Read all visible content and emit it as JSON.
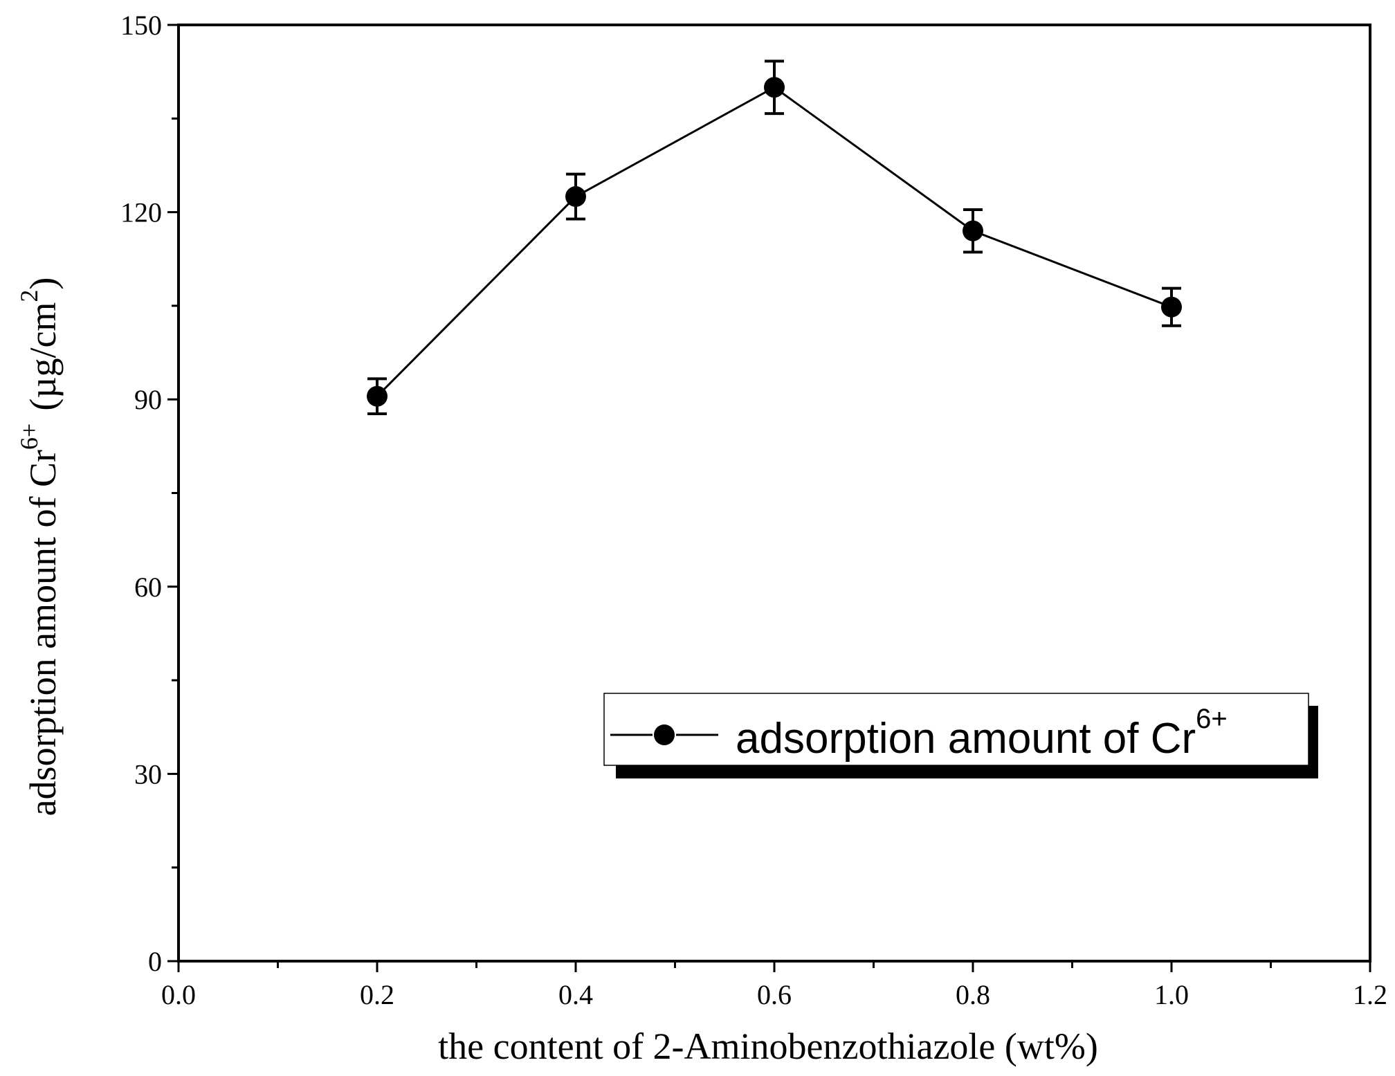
{
  "chart_data": {
    "type": "line",
    "xlabel": "the content of 2-Aminobenzothiazole (wt%)",
    "ylabel_main": "adsorption amount of Cr",
    "ylabel_sup": "6+",
    "ylabel_unit": "(µg/cm",
    "ylabel_unit_sup": "2",
    "ylabel_close": ")",
    "xlim": [
      0.0,
      1.2
    ],
    "ylim": [
      0,
      150
    ],
    "x_ticks": [
      0.0,
      0.2,
      0.4,
      0.6,
      0.8,
      1.0,
      1.2
    ],
    "x_tick_labels": [
      "0.0",
      "0.2",
      "0.4",
      "0.6",
      "0.8",
      "1.0",
      "1.2"
    ],
    "y_ticks": [
      0,
      30,
      60,
      90,
      120,
      150
    ],
    "y_tick_labels": [
      "0",
      "30",
      "60",
      "90",
      "120",
      "150"
    ],
    "grid": false,
    "legend_position": "lower-right",
    "series": [
      {
        "name": "adsorption amount of Cr",
        "name_sup": "6+",
        "color": "#000000",
        "marker": "circle",
        "x": [
          0.2,
          0.4,
          0.6,
          0.8,
          1.0
        ],
        "y": [
          90.5,
          122.5,
          140.0,
          117.0,
          104.8
        ],
        "error": [
          2.8,
          3.6,
          4.2,
          3.4,
          3.0
        ]
      }
    ]
  }
}
